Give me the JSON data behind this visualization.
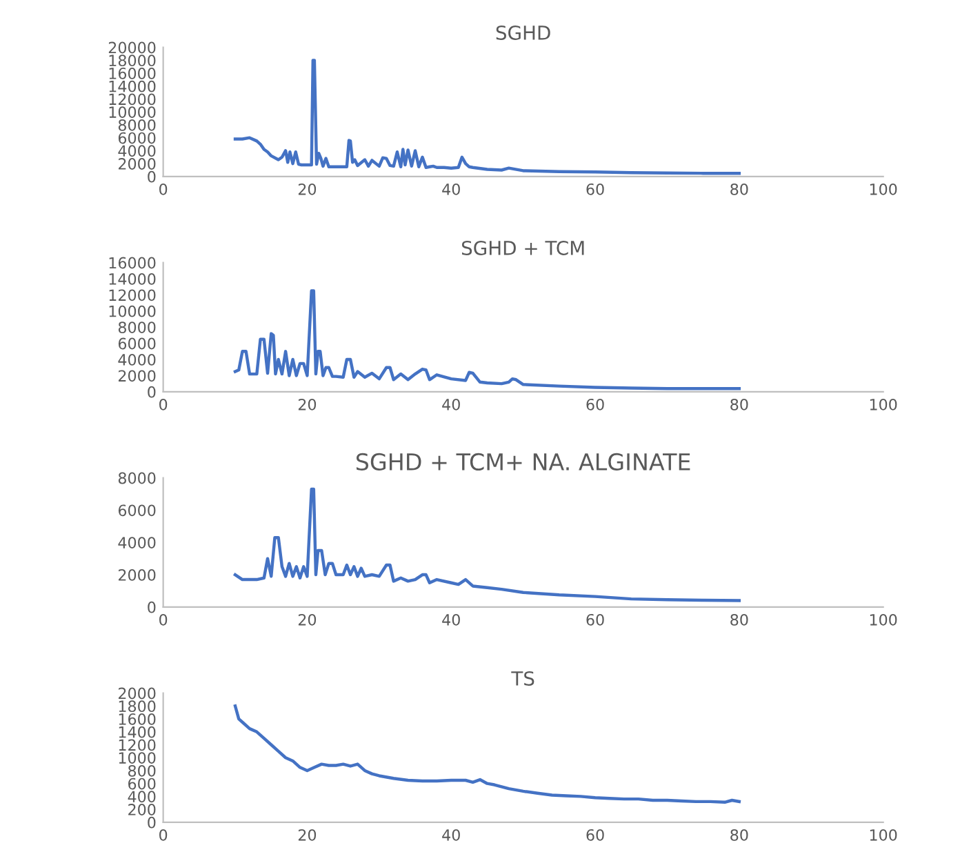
{
  "chart_data": [
    {
      "type": "line",
      "title": "SGHD",
      "xlim": [
        0,
        100
      ],
      "xticks": [
        0,
        20,
        40,
        60,
        80,
        100
      ],
      "ylim": [
        0,
        20000
      ],
      "yticks": [
        0,
        2000,
        4000,
        6000,
        8000,
        10000,
        12000,
        14000,
        16000,
        18000,
        20000
      ],
      "grid": false,
      "legend": false,
      "marker": "none",
      "line_style": "solid",
      "series": [
        {
          "color": "#4472c4",
          "x": [
            10,
            11,
            12,
            13,
            13.5,
            14,
            14.5,
            15,
            16,
            16.5,
            17,
            17.3,
            17.6,
            18,
            18.4,
            18.8,
            19.2,
            19.6,
            20.2,
            20.6,
            20.8,
            21,
            21.3,
            21.6,
            21.9,
            22.2,
            22.6,
            23,
            23.3,
            23.7,
            24.5,
            25.5,
            25.8,
            26,
            26.3,
            26.6,
            27,
            28,
            28.5,
            29,
            30,
            30.5,
            31,
            31.5,
            32,
            32.5,
            33,
            33.3,
            33.6,
            34,
            34.5,
            35,
            35.5,
            36,
            36.5,
            37,
            37.5,
            38,
            39,
            40,
            41,
            41.5,
            42,
            42.5,
            43,
            45,
            47,
            48,
            50,
            55,
            60,
            65,
            70,
            75,
            80
          ],
          "values": [
            5800,
            5800,
            6000,
            5500,
            5000,
            4200,
            3800,
            3200,
            2600,
            3000,
            4000,
            2200,
            3800,
            2000,
            3800,
            1900,
            1800,
            1800,
            1800,
            1800,
            18000,
            18000,
            1900,
            3600,
            2800,
            1600,
            2800,
            1500,
            1500,
            1500,
            1500,
            1500,
            5600,
            5500,
            2200,
            2600,
            1700,
            2600,
            1600,
            2500,
            1600,
            2900,
            2800,
            1700,
            1600,
            3800,
            1500,
            4200,
            1800,
            4100,
            1600,
            4000,
            1500,
            3000,
            1400,
            1500,
            1600,
            1400,
            1400,
            1300,
            1400,
            3000,
            2000,
            1500,
            1400,
            1100,
            1000,
            1300,
            900,
            750,
            700,
            600,
            550,
            500,
            500
          ]
        }
      ]
    },
    {
      "type": "line",
      "title": "SGHD + TCM",
      "xlim": [
        0,
        100
      ],
      "xticks": [
        0,
        20,
        40,
        60,
        80,
        100
      ],
      "ylim": [
        0,
        16000
      ],
      "yticks": [
        0,
        2000,
        4000,
        6000,
        8000,
        10000,
        12000,
        14000,
        16000
      ],
      "grid": false,
      "legend": false,
      "marker": "none",
      "line_style": "solid",
      "series": [
        {
          "color": "#4472c4",
          "x": [
            10,
            10.5,
            11,
            11.5,
            12,
            13,
            13.5,
            14,
            14.5,
            15,
            15.3,
            15.6,
            16,
            16.5,
            17,
            17.5,
            18,
            18.5,
            19,
            19.5,
            20,
            20.6,
            20.9,
            21.2,
            21.5,
            21.8,
            22.2,
            22.6,
            23,
            23.5,
            24,
            25,
            25.5,
            26,
            26.5,
            27,
            28,
            29,
            30,
            31,
            31.5,
            32,
            33,
            34,
            35,
            36,
            36.5,
            37,
            38,
            40,
            42,
            42.5,
            43,
            44,
            45,
            47,
            48,
            48.5,
            49,
            50,
            55,
            60,
            65,
            70,
            75,
            80
          ],
          "values": [
            2500,
            2700,
            5000,
            5000,
            2200,
            2200,
            6500,
            6500,
            2300,
            7200,
            7000,
            2200,
            4000,
            2200,
            5000,
            2000,
            4000,
            2000,
            3500,
            3500,
            2000,
            12500,
            12500,
            2200,
            5000,
            5000,
            2000,
            3000,
            3000,
            1900,
            1900,
            1800,
            4000,
            4000,
            1800,
            2500,
            1800,
            2300,
            1600,
            3000,
            3000,
            1500,
            2200,
            1500,
            2200,
            2800,
            2700,
            1500,
            2100,
            1600,
            1400,
            2400,
            2300,
            1200,
            1100,
            1000,
            1200,
            1600,
            1500,
            900,
            700,
            550,
            450,
            400,
            400,
            400
          ]
        }
      ]
    },
    {
      "type": "line",
      "title": "SGHD + TCM+ NA. ALGINATE",
      "xlim": [
        0,
        100
      ],
      "xticks": [
        0,
        20,
        40,
        60,
        80,
        100
      ],
      "ylim": [
        0,
        8000
      ],
      "yticks": [
        0,
        2000,
        4000,
        6000,
        8000
      ],
      "grid": false,
      "legend": false,
      "marker": "none",
      "line_style": "solid",
      "series": [
        {
          "color": "#4472c4",
          "x": [
            10,
            11,
            12,
            13,
            14,
            14.5,
            15,
            15.5,
            16,
            16.5,
            17,
            17.5,
            18,
            18.5,
            19,
            19.5,
            20,
            20.6,
            20.9,
            21.2,
            21.5,
            22,
            22.5,
            23,
            23.5,
            24,
            25,
            25.5,
            26,
            26.5,
            27,
            27.5,
            28,
            29,
            30,
            31,
            31.5,
            32,
            33,
            34,
            35,
            36,
            36.5,
            37,
            38,
            40,
            41,
            42,
            43,
            45,
            47,
            50,
            55,
            60,
            65,
            70,
            75,
            80
          ],
          "values": [
            2000,
            1700,
            1700,
            1700,
            1800,
            3000,
            1900,
            4300,
            4300,
            2500,
            1900,
            2700,
            1900,
            2500,
            1800,
            2500,
            1900,
            7300,
            7300,
            2000,
            3500,
            3500,
            2000,
            2700,
            2700,
            2000,
            2000,
            2600,
            2000,
            2500,
            1900,
            2400,
            1900,
            2000,
            1900,
            2600,
            2600,
            1600,
            1800,
            1600,
            1700,
            2000,
            2000,
            1500,
            1700,
            1500,
            1400,
            1700,
            1300,
            1200,
            1100,
            900,
            750,
            650,
            500,
            450,
            420,
            400
          ]
        }
      ]
    },
    {
      "type": "line",
      "title": "TS",
      "xlim": [
        0,
        100
      ],
      "xticks": [
        0,
        20,
        40,
        60,
        80,
        100
      ],
      "ylim": [
        0,
        2000
      ],
      "yticks": [
        0,
        200,
        400,
        600,
        800,
        1000,
        1200,
        1400,
        1600,
        1800,
        2000
      ],
      "grid": false,
      "legend": false,
      "marker": "none",
      "line_style": "solid",
      "series": [
        {
          "color": "#4472c4",
          "x": [
            10,
            10.5,
            11,
            12,
            13,
            14,
            15,
            16,
            17,
            18,
            19,
            20,
            21,
            22,
            23,
            24,
            25,
            26,
            27,
            28,
            29,
            30,
            32,
            34,
            36,
            38,
            40,
            42,
            43,
            44,
            45,
            46,
            48,
            50,
            52,
            54,
            56,
            58,
            60,
            62,
            64,
            66,
            68,
            70,
            72,
            74,
            76,
            78,
            79,
            80
          ],
          "values": [
            1800,
            1600,
            1550,
            1450,
            1400,
            1300,
            1200,
            1100,
            1000,
            950,
            850,
            800,
            850,
            900,
            880,
            880,
            900,
            870,
            900,
            800,
            750,
            720,
            680,
            650,
            640,
            640,
            650,
            650,
            620,
            660,
            600,
            580,
            520,
            480,
            450,
            420,
            410,
            400,
            380,
            370,
            360,
            360,
            340,
            340,
            330,
            320,
            320,
            310,
            340,
            320
          ]
        }
      ]
    }
  ]
}
